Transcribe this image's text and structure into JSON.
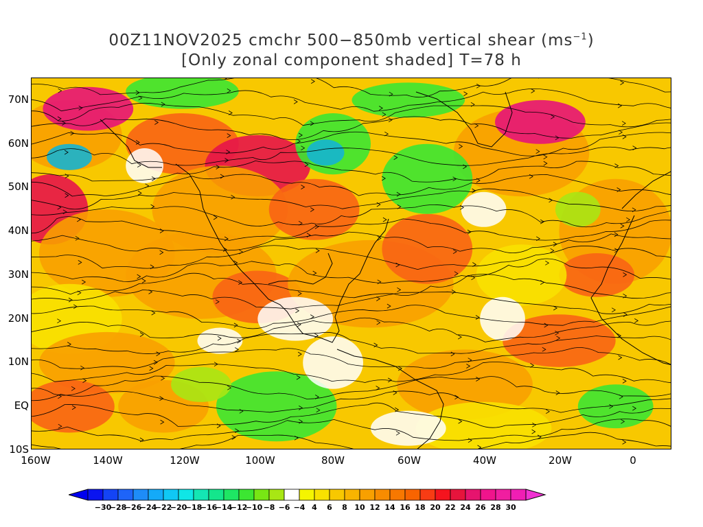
{
  "title": {
    "line1_prefix": "00Z11NOV2025 cmchr 500−850mb vertical shear (ms",
    "line1_sup": "−1",
    "line1_suffix": ")",
    "line2": "[Only zonal component shaded] T=78 h"
  },
  "axes": {
    "x_ticks": [
      "160W",
      "140W",
      "120W",
      "100W",
      "80W",
      "60W",
      "40W",
      "20W",
      "0"
    ],
    "y_ticks": [
      "70N",
      "60N",
      "50N",
      "40N",
      "30N",
      "20N",
      "10N",
      "EQ",
      "10S"
    ],
    "lon_range": [
      -160,
      10
    ],
    "lat_range": [
      -10,
      75
    ]
  },
  "colorbar": {
    "labels": [
      "−30",
      "−28",
      "−26",
      "−24",
      "−22",
      "−20",
      "−18",
      "−16",
      "−14",
      "−12",
      "−10",
      "−8",
      "−6",
      "−4",
      "4",
      "6",
      "8",
      "10",
      "12",
      "14",
      "16",
      "18",
      "20",
      "22",
      "24",
      "26",
      "28",
      "30"
    ],
    "colors": [
      "#0a14f0",
      "#1444f5",
      "#1e64f8",
      "#1e8cf8",
      "#14aaf8",
      "#10c8f5",
      "#10e6e6",
      "#14e6b4",
      "#14e68c",
      "#1ee664",
      "#3ce632",
      "#78e614",
      "#a8e614",
      "#ffffff",
      "#f5f500",
      "#f8e100",
      "#f8c800",
      "#f8b400",
      "#f8a000",
      "#f88c00",
      "#f87800",
      "#f86400",
      "#f83c14",
      "#f5141e",
      "#e6143c",
      "#e6146e",
      "#f0148c",
      "#f01ea0",
      "#f01eb4"
    ],
    "under_color": "#0000f0",
    "over_color": "#f032d2"
  },
  "field": {
    "shading_colors": {
      "strong_neg": "#14b4d2",
      "neg": "#3ce632",
      "weak_neg": "#a8e614",
      "weak_pos": "#f8e100",
      "pos": "#f8a000",
      "strong_pos": "#f86414",
      "very_strong_pos": "#e6144a",
      "extreme_pos": "#e61478"
    },
    "blobs": [
      {
        "lon": -150,
        "lat": 62,
        "rx": 14,
        "ry": 8,
        "level": "pos"
      },
      {
        "lon": -145,
        "lat": 68,
        "rx": 12,
        "ry": 5,
        "level": "extreme_pos"
      },
      {
        "lon": -120,
        "lat": 60,
        "rx": 15,
        "ry": 7,
        "level": "strong_pos"
      },
      {
        "lon": -100,
        "lat": 55,
        "rx": 14,
        "ry": 7,
        "level": "very_strong_pos"
      },
      {
        "lon": -110,
        "lat": 45,
        "rx": 18,
        "ry": 10,
        "level": "pos"
      },
      {
        "lon": -85,
        "lat": 45,
        "rx": 12,
        "ry": 7,
        "level": "strong_pos"
      },
      {
        "lon": -155,
        "lat": 45,
        "rx": 10,
        "ry": 8,
        "level": "very_strong_pos"
      },
      {
        "lon": -140,
        "lat": 35,
        "rx": 18,
        "ry": 10,
        "level": "pos"
      },
      {
        "lon": -115,
        "lat": 30,
        "rx": 20,
        "ry": 10,
        "level": "pos"
      },
      {
        "lon": -100,
        "lat": 25,
        "rx": 12,
        "ry": 6,
        "level": "strong_pos"
      },
      {
        "lon": -70,
        "lat": 28,
        "rx": 22,
        "ry": 10,
        "level": "pos"
      },
      {
        "lon": -55,
        "lat": 36,
        "rx": 12,
        "ry": 8,
        "level": "strong_pos"
      },
      {
        "lon": -150,
        "lat": 20,
        "rx": 14,
        "ry": 8,
        "level": "weak_pos"
      },
      {
        "lon": -140,
        "lat": 10,
        "rx": 18,
        "ry": 7,
        "level": "pos"
      },
      {
        "lon": -150,
        "lat": 0,
        "rx": 12,
        "ry": 6,
        "level": "strong_pos"
      },
      {
        "lon": -125,
        "lat": 0,
        "rx": 12,
        "ry": 6,
        "level": "pos"
      },
      {
        "lon": -45,
        "lat": 5,
        "rx": 18,
        "ry": 8,
        "level": "pos"
      },
      {
        "lon": -20,
        "lat": 15,
        "rx": 15,
        "ry": 6,
        "level": "strong_pos"
      },
      {
        "lon": -30,
        "lat": 58,
        "rx": 18,
        "ry": 10,
        "level": "pos"
      },
      {
        "lon": -25,
        "lat": 65,
        "rx": 12,
        "ry": 5,
        "level": "extreme_pos"
      },
      {
        "lon": -5,
        "lat": 40,
        "rx": 15,
        "ry": 12,
        "level": "pos"
      },
      {
        "lon": -10,
        "lat": 30,
        "rx": 10,
        "ry": 5,
        "level": "strong_pos"
      },
      {
        "lon": -30,
        "lat": 30,
        "rx": 12,
        "ry": 7,
        "level": "weak_pos"
      },
      {
        "lon": -40,
        "lat": -5,
        "rx": 18,
        "ry": 6,
        "level": "weak_pos"
      },
      {
        "lon": -80,
        "lat": 60,
        "rx": 10,
        "ry": 7,
        "level": "neg"
      },
      {
        "lon": -82,
        "lat": 58,
        "rx": 5,
        "ry": 3,
        "level": "strong_neg"
      },
      {
        "lon": -55,
        "lat": 52,
        "rx": 12,
        "ry": 8,
        "level": "neg"
      },
      {
        "lon": -120,
        "lat": 72,
        "rx": 15,
        "ry": 4,
        "level": "neg"
      },
      {
        "lon": -95,
        "lat": 0,
        "rx": 16,
        "ry": 8,
        "level": "neg"
      },
      {
        "lon": -115,
        "lat": 5,
        "rx": 8,
        "ry": 4,
        "level": "weak_neg"
      },
      {
        "lon": -5,
        "lat": 0,
        "rx": 10,
        "ry": 5,
        "level": "neg"
      },
      {
        "lon": -150,
        "lat": 57,
        "rx": 6,
        "ry": 3,
        "level": "strong_neg"
      },
      {
        "lon": -15,
        "lat": 45,
        "rx": 6,
        "ry": 4,
        "level": "weak_neg"
      },
      {
        "lon": -60,
        "lat": 70,
        "rx": 15,
        "ry": 4,
        "level": "neg"
      }
    ]
  }
}
